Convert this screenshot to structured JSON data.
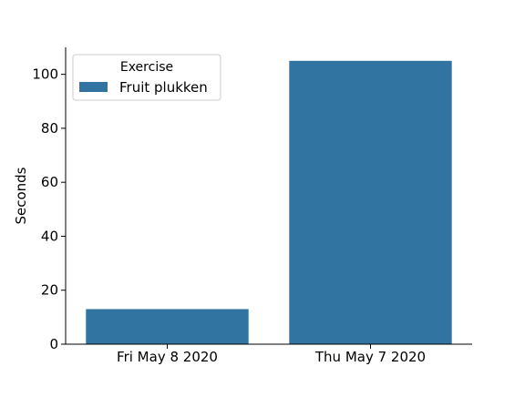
{
  "chart_data": {
    "type": "bar",
    "categories": [
      "Fri May 8 2020",
      "Thu May 7 2020"
    ],
    "series": [
      {
        "name": "Fruit plukken",
        "values": [
          13,
          105
        ],
        "color": "#3274a1"
      }
    ],
    "title": "",
    "xlabel": "",
    "ylabel": "Seconds",
    "ylim": [
      0,
      110
    ],
    "yticks": [
      0,
      20,
      40,
      60,
      80,
      100
    ],
    "grid": false,
    "legend": {
      "title": "Exercise",
      "placement": "top-left"
    }
  }
}
